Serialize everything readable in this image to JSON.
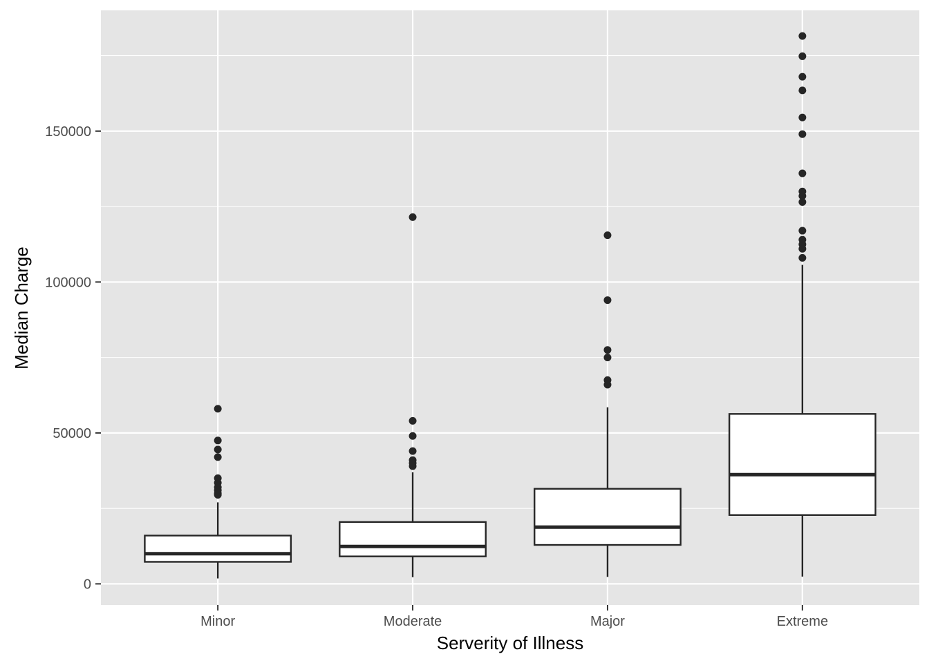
{
  "chart_data": {
    "type": "boxplot",
    "title": "",
    "xlabel": "Serverity of Illness",
    "ylabel": "Median Charge",
    "ylim": [
      -7000,
      190000
    ],
    "y_ticks": [
      0,
      50000,
      100000,
      150000
    ],
    "y_tick_labels": [
      "0",
      "50000",
      "100000",
      "150000"
    ],
    "grid": true,
    "categories": [
      "Minor",
      "Moderate",
      "Major",
      "Extreme"
    ],
    "boxes": [
      {
        "category": "Minor",
        "whisker_low": 1800,
        "q1": 7300,
        "median": 10000,
        "q3": 16000,
        "whisker_high": 27000,
        "outliers": [
          58000,
          47500,
          44500,
          42000,
          35000,
          33500,
          32000,
          31000,
          30000,
          29500
        ]
      },
      {
        "category": "Moderate",
        "whisker_low": 2200,
        "q1": 9100,
        "median": 12400,
        "q3": 20500,
        "whisker_high": 37000,
        "outliers": [
          121500,
          54000,
          49000,
          44000,
          41000,
          40000,
          39000
        ]
      },
      {
        "category": "Major",
        "whisker_low": 2300,
        "q1": 12900,
        "median": 18800,
        "q3": 31500,
        "whisker_high": 58500,
        "outliers": [
          115500,
          94000,
          77500,
          75000,
          67500,
          66000
        ]
      },
      {
        "category": "Extreme",
        "whisker_low": 2400,
        "q1": 22800,
        "median": 36200,
        "q3": 56300,
        "whisker_high": 105700,
        "outliers": [
          181500,
          174800,
          168000,
          163500,
          154500,
          149000,
          136000,
          130000,
          128500,
          126500,
          117000,
          114000,
          112500,
          111000,
          108000
        ]
      }
    ],
    "colors": {
      "panel": "#e5e5e5",
      "grid": "#ffffff",
      "box_fill": "#ffffff",
      "stroke": "#262626",
      "tick_text": "#4d4d4d",
      "title_text": "#000000"
    }
  }
}
